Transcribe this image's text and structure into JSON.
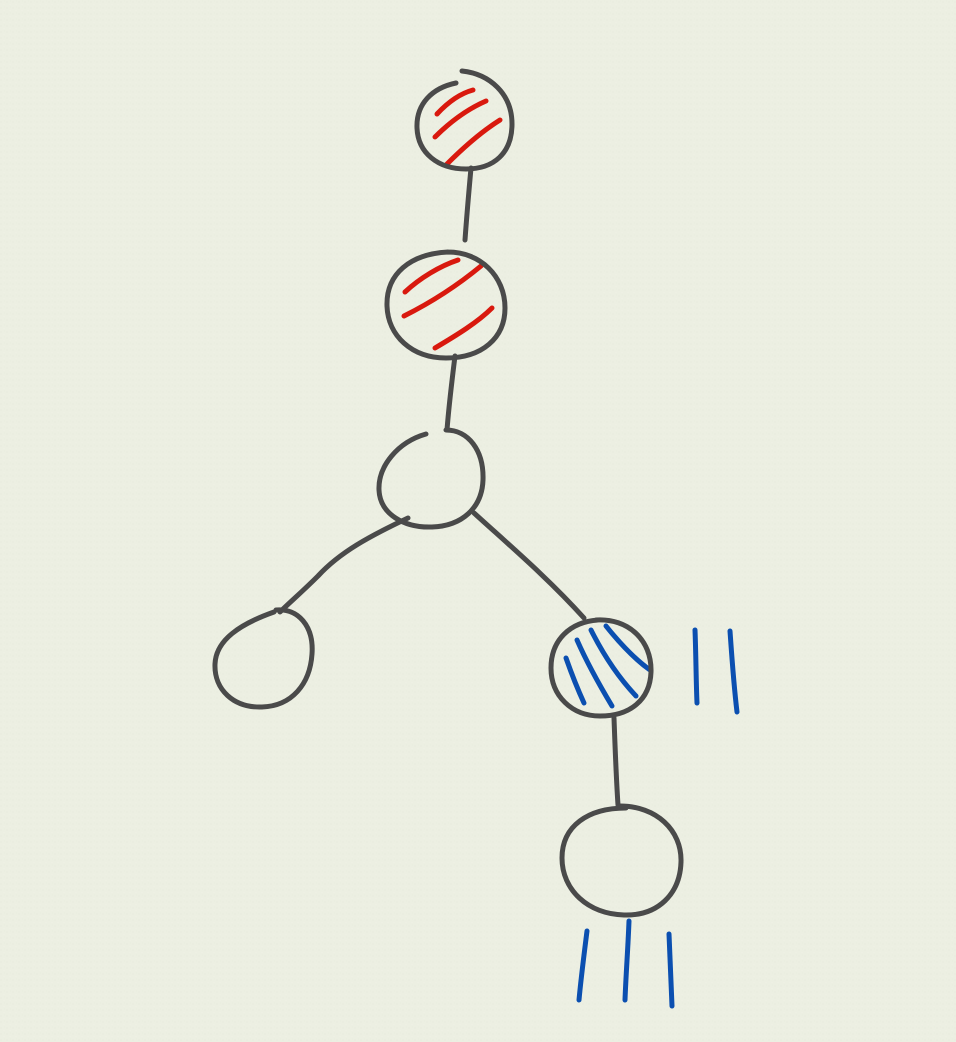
{
  "colors": {
    "paper": "#ecefe2",
    "ink": "#4a4a4a",
    "red": "#d9190e",
    "blue": "#0b4fb0"
  },
  "nodes": [
    {
      "id": "node-1",
      "fill": "red-hatch"
    },
    {
      "id": "node-2",
      "fill": "red-hatch"
    },
    {
      "id": "node-3",
      "fill": "empty"
    },
    {
      "id": "node-4",
      "fill": "empty"
    },
    {
      "id": "node-5",
      "fill": "blue-hatch",
      "tally": 2
    },
    {
      "id": "node-6",
      "fill": "empty",
      "tally": 3
    }
  ],
  "edges": [
    {
      "from": "node-1",
      "to": "node-2"
    },
    {
      "from": "node-2",
      "to": "node-3"
    },
    {
      "from": "node-3",
      "to": "node-4"
    },
    {
      "from": "node-3",
      "to": "node-5"
    },
    {
      "from": "node-5",
      "to": "node-6"
    }
  ]
}
